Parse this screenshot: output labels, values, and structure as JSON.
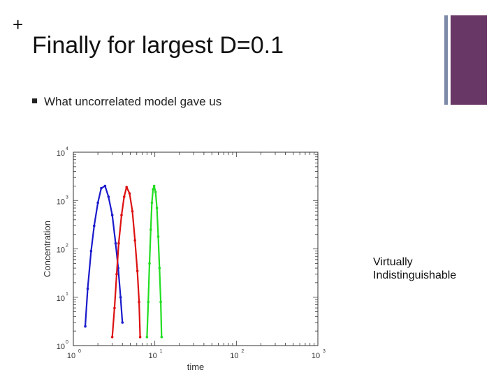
{
  "slide": {
    "plus": "+",
    "title": "Finally for largest D=0.1",
    "bullet": "What uncorrelated model gave us",
    "annotation_line1": "Virtually",
    "annotation_line2": "Indistinguishable",
    "accent_color": "#683766",
    "accent_line_color": "#7d8aa8"
  },
  "chart_data": {
    "type": "scatter",
    "title": "",
    "xlabel": "time",
    "ylabel": "Concentration",
    "x_scale": "log",
    "y_scale": "log",
    "xlim": [
      1,
      1000
    ],
    "ylim": [
      1,
      10000
    ],
    "x_ticks": [
      {
        "base": "10",
        "exp": "0"
      },
      {
        "base": "10",
        "exp": "1"
      },
      {
        "base": "10",
        "exp": "2"
      },
      {
        "base": "10",
        "exp": "3"
      }
    ],
    "y_ticks": [
      {
        "base": "10",
        "exp": "0"
      },
      {
        "base": "10",
        "exp": "1"
      },
      {
        "base": "10",
        "exp": "2"
      },
      {
        "base": "10",
        "exp": "3"
      },
      {
        "base": "10",
        "exp": "4"
      }
    ],
    "grid": false,
    "legend": "none",
    "series": [
      {
        "color": "#1a1acc",
        "x": [
          1.4,
          1.5,
          1.65,
          1.8,
          2.0,
          2.2,
          2.45,
          2.7,
          3.0,
          3.3,
          3.55,
          3.8,
          4.0
        ],
        "y": [
          2.5,
          15,
          90,
          300,
          900,
          1800,
          2000,
          1200,
          500,
          130,
          40,
          10,
          3
        ]
      },
      {
        "color": "#dd1111",
        "x": [
          3.0,
          3.2,
          3.4,
          3.6,
          3.9,
          4.2,
          4.5,
          4.9,
          5.3,
          5.7,
          6.1,
          6.4,
          6.6
        ],
        "y": [
          1.5,
          6,
          30,
          130,
          500,
          1200,
          1900,
          1400,
          600,
          150,
          35,
          8,
          1.5
        ]
      },
      {
        "color": "#22dd22",
        "x": [
          8.0,
          8.3,
          8.6,
          8.9,
          9.2,
          9.5,
          9.8,
          10.2,
          10.6,
          11.0,
          11.4,
          11.8,
          12.1
        ],
        "y": [
          1.5,
          8,
          50,
          250,
          900,
          1700,
          2000,
          1500,
          700,
          180,
          40,
          8,
          1.5
        ]
      }
    ]
  }
}
